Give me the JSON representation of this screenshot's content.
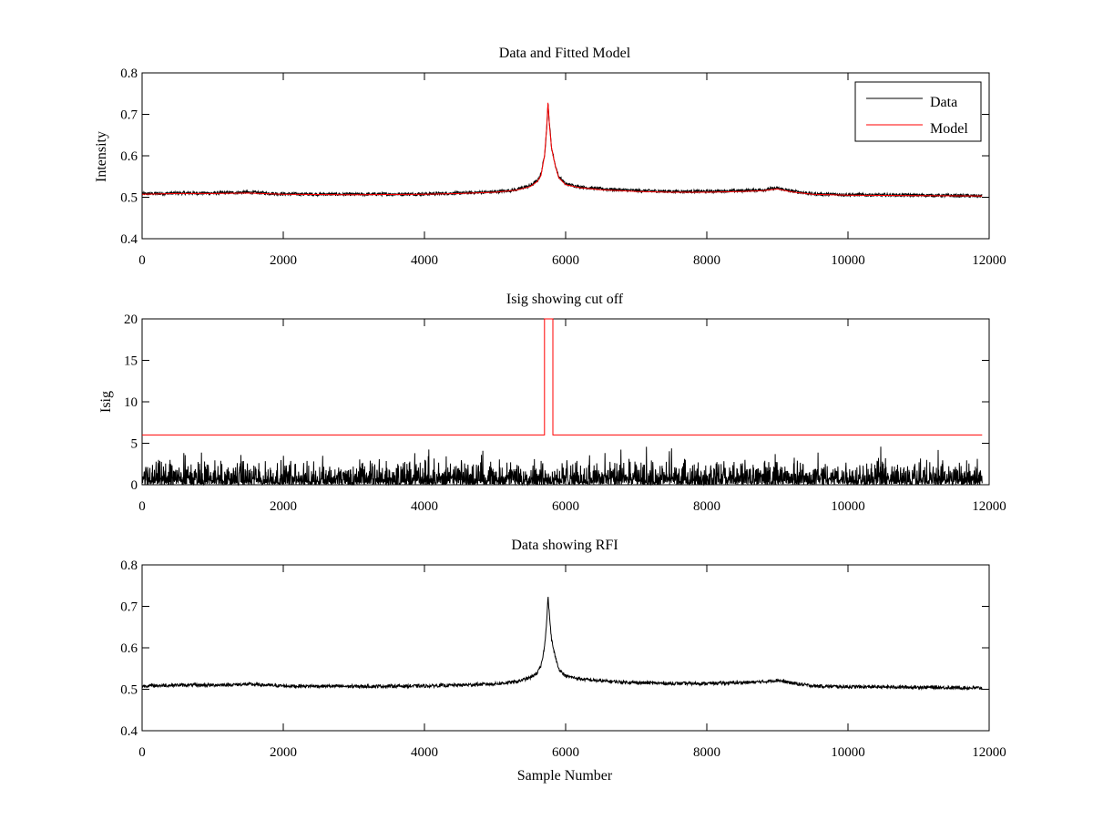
{
  "figure": {
    "background": "#ffffff"
  },
  "chart_data": [
    {
      "type": "line",
      "title": "Data and Fitted Model",
      "xlabel": "",
      "ylabel": "Intensity",
      "xlim": [
        0,
        12000
      ],
      "ylim": [
        0.4,
        0.8
      ],
      "xticks": [
        0,
        2000,
        4000,
        6000,
        8000,
        10000,
        12000
      ],
      "yticks": [
        0.4,
        0.5,
        0.6,
        0.7,
        0.8
      ],
      "ytick_labels": [
        "0.4",
        "0.5",
        "0.6",
        "0.7",
        "0.8"
      ],
      "grid": false,
      "legend": {
        "position": "top-right",
        "entries": [
          "Data",
          "Model"
        ]
      },
      "series": [
        {
          "name": "Data",
          "color": "#000000",
          "style": "noisy",
          "x": [
            0,
            500,
            1000,
            1500,
            2000,
            3000,
            4000,
            4500,
            5000,
            5300,
            5500,
            5600,
            5650,
            5700,
            5730,
            5750,
            5770,
            5800,
            5850,
            5900,
            6000,
            6200,
            6500,
            7000,
            7500,
            8000,
            8500,
            8800,
            9000,
            9200,
            9500,
            10000,
            11000,
            11900
          ],
          "values": [
            0.508,
            0.51,
            0.51,
            0.512,
            0.508,
            0.507,
            0.508,
            0.51,
            0.513,
            0.518,
            0.528,
            0.54,
            0.555,
            0.6,
            0.66,
            0.725,
            0.68,
            0.62,
            0.58,
            0.55,
            0.532,
            0.525,
            0.52,
            0.516,
            0.514,
            0.514,
            0.516,
            0.518,
            0.522,
            0.515,
            0.508,
            0.506,
            0.505,
            0.503
          ],
          "noise_amplitude": 0.004
        },
        {
          "name": "Model",
          "color": "#ff0000",
          "style": "smooth",
          "x": [
            0,
            500,
            1000,
            1500,
            2000,
            3000,
            4000,
            4500,
            5000,
            5300,
            5500,
            5600,
            5650,
            5700,
            5730,
            5750,
            5770,
            5800,
            5850,
            5900,
            6000,
            6200,
            6500,
            7000,
            7500,
            8000,
            8500,
            8800,
            9000,
            9200,
            9500,
            10000,
            11000,
            11900
          ],
          "values": [
            0.507,
            0.509,
            0.509,
            0.51,
            0.507,
            0.506,
            0.507,
            0.509,
            0.512,
            0.517,
            0.526,
            0.538,
            0.552,
            0.6,
            0.665,
            0.728,
            0.675,
            0.62,
            0.578,
            0.548,
            0.53,
            0.523,
            0.518,
            0.514,
            0.512,
            0.512,
            0.514,
            0.516,
            0.52,
            0.513,
            0.507,
            0.505,
            0.504,
            0.503
          ]
        }
      ]
    },
    {
      "type": "line",
      "title": "Isig showing cut off",
      "xlabel": "",
      "ylabel": "Isig",
      "xlim": [
        0,
        12000
      ],
      "ylim": [
        0,
        20
      ],
      "xticks": [
        0,
        2000,
        4000,
        6000,
        8000,
        10000,
        12000
      ],
      "yticks": [
        0,
        5,
        10,
        15,
        20
      ],
      "ytick_labels": [
        "0",
        "5",
        "10",
        "15",
        "20"
      ],
      "grid": false,
      "series": [
        {
          "color": "#000000",
          "style": "spiky",
          "x": [
            0,
            11900
          ],
          "values": [
            0,
            0
          ],
          "typical_max": 2.5,
          "peak_max": 4.6
        },
        {
          "color": "#ff0000",
          "style": "step",
          "x": [
            0,
            5700,
            5700,
            5820,
            5820,
            11900
          ],
          "values": [
            6,
            6,
            20,
            20,
            6,
            6
          ]
        }
      ]
    },
    {
      "type": "line",
      "title": "Data showing RFI",
      "xlabel": "Sample Number",
      "ylabel": "",
      "xlim": [
        0,
        12000
      ],
      "ylim": [
        0.4,
        0.8
      ],
      "xticks": [
        0,
        2000,
        4000,
        6000,
        8000,
        10000,
        12000
      ],
      "yticks": [
        0.4,
        0.5,
        0.6,
        0.7,
        0.8
      ],
      "ytick_labels": [
        "0.4",
        "0.5",
        "0.6",
        "0.7",
        "0.8"
      ],
      "grid": false,
      "series": [
        {
          "color": "#000000",
          "style": "noisy",
          "x": [
            0,
            500,
            1000,
            1500,
            2000,
            3000,
            4000,
            4500,
            5000,
            5300,
            5500,
            5600,
            5650,
            5700,
            5730,
            5750,
            5770,
            5800,
            5850,
            5900,
            6000,
            6200,
            6500,
            7000,
            7500,
            8000,
            8500,
            8800,
            9000,
            9200,
            9500,
            10000,
            11000,
            11900
          ],
          "values": [
            0.508,
            0.51,
            0.51,
            0.512,
            0.508,
            0.507,
            0.508,
            0.51,
            0.513,
            0.518,
            0.528,
            0.54,
            0.555,
            0.6,
            0.66,
            0.725,
            0.68,
            0.62,
            0.58,
            0.55,
            0.532,
            0.525,
            0.52,
            0.516,
            0.514,
            0.514,
            0.516,
            0.518,
            0.522,
            0.515,
            0.508,
            0.506,
            0.505,
            0.503
          ],
          "noise_amplitude": 0.004
        }
      ]
    }
  ]
}
